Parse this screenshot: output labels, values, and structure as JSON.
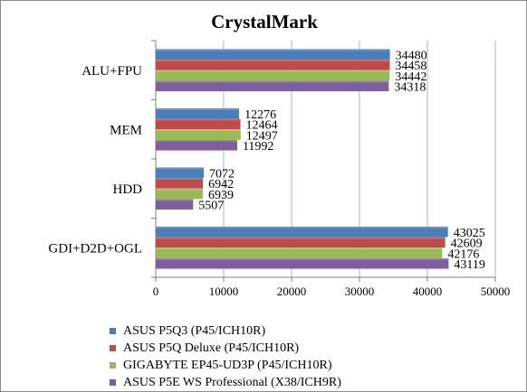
{
  "chart_data": {
    "type": "bar",
    "orientation": "horizontal",
    "title": "CrystalMark",
    "categories": [
      "ALU+FPU",
      "MEM",
      "HDD",
      "GDI+D2D+OGL"
    ],
    "series": [
      {
        "name": "ASUS P5Q3 (P45/ICH10R)",
        "color": "#4a7ebb",
        "values": [
          34480,
          12276,
          7072,
          43025
        ]
      },
      {
        "name": "ASUS P5Q Deluxe (P45/ICH10R)",
        "color": "#be4b48",
        "values": [
          34458,
          12464,
          6942,
          42609
        ]
      },
      {
        "name": "GIGABYTE EP45-UD3P (P45/ICH10R)",
        "color": "#98b954",
        "values": [
          34442,
          12497,
          6939,
          42176
        ]
      },
      {
        "name": "ASUS P5E WS Professional (X38/ICH9R)",
        "color": "#7d5fa0",
        "values": [
          34318,
          11992,
          5507,
          43119
        ]
      }
    ],
    "xlim": [
      0,
      50000
    ],
    "xticks": [
      "0",
      "10000",
      "20000",
      "30000",
      "40000",
      "50000"
    ],
    "grid": true,
    "legend_position": "bottom"
  }
}
